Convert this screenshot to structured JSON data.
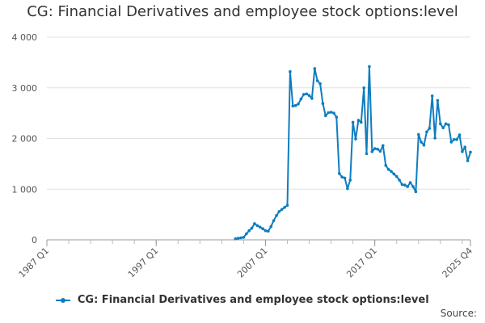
{
  "chart_data": {
    "type": "line",
    "title": "CG: Financial Derivatives and employee stock options:level",
    "xlabel": "",
    "ylabel": "",
    "ylim": [
      0,
      4000
    ],
    "yticks": [
      0,
      1000,
      2000,
      3000,
      4000
    ],
    "ytick_labels": [
      "0",
      "1 000",
      "2 000",
      "3 000",
      "4 000"
    ],
    "x_start": "1987 Q1",
    "x_end": "2025 Q4",
    "xtick_labels": [
      "1987 Q1",
      "1997 Q1",
      "2007 Q1",
      "2017 Q1",
      "2025 Q4"
    ],
    "xtick_positions": [
      "1987 Q1",
      "1997 Q1",
      "2007 Q1",
      "2017 Q1",
      "2025 Q4"
    ],
    "grid": "horizontal",
    "legend": "bottom",
    "color": "#0e7dbf",
    "series": [
      {
        "name": "CG: Financial Derivatives and employee stock options:level",
        "x": [
          "2004 Q2",
          "2004 Q3",
          "2004 Q4",
          "2005 Q1",
          "2005 Q2",
          "2005 Q3",
          "2005 Q4",
          "2006 Q1",
          "2006 Q2",
          "2006 Q3",
          "2006 Q4",
          "2007 Q1",
          "2007 Q2",
          "2007 Q3",
          "2007 Q4",
          "2008 Q1",
          "2008 Q2",
          "2008 Q3",
          "2008 Q4",
          "2009 Q1",
          "2009 Q2",
          "2009 Q3",
          "2009 Q4",
          "2010 Q1",
          "2010 Q2",
          "2010 Q3",
          "2010 Q4",
          "2011 Q1",
          "2011 Q2",
          "2011 Q3",
          "2011 Q4",
          "2012 Q1",
          "2012 Q2",
          "2012 Q3",
          "2012 Q4",
          "2013 Q1",
          "2013 Q2",
          "2013 Q3",
          "2013 Q4",
          "2014 Q1",
          "2014 Q2",
          "2014 Q3",
          "2014 Q4",
          "2015 Q1",
          "2015 Q2",
          "2015 Q3",
          "2015 Q4",
          "2016 Q1",
          "2016 Q2",
          "2016 Q3",
          "2016 Q4",
          "2017 Q1",
          "2017 Q2",
          "2017 Q3",
          "2017 Q4",
          "2018 Q1",
          "2018 Q2",
          "2018 Q3",
          "2018 Q4",
          "2019 Q1",
          "2019 Q2",
          "2019 Q3",
          "2019 Q4",
          "2020 Q1",
          "2020 Q2",
          "2020 Q3",
          "2020 Q4",
          "2021 Q1",
          "2021 Q2",
          "2021 Q3",
          "2021 Q4",
          "2022 Q1",
          "2022 Q2",
          "2022 Q3",
          "2022 Q4",
          "2023 Q1",
          "2023 Q2",
          "2023 Q3",
          "2023 Q4",
          "2024 Q1",
          "2024 Q2",
          "2024 Q3",
          "2024 Q4",
          "2025 Q1",
          "2025 Q2",
          "2025 Q3",
          "2025 Q4"
        ],
        "values": [
          20,
          30,
          40,
          50,
          120,
          180,
          230,
          320,
          280,
          250,
          220,
          180,
          170,
          260,
          380,
          480,
          560,
          600,
          640,
          680,
          3320,
          2640,
          2650,
          2680,
          2780,
          2870,
          2880,
          2850,
          2790,
          3380,
          3140,
          3080,
          2690,
          2450,
          2510,
          2520,
          2500,
          2420,
          1310,
          1240,
          1220,
          1010,
          1180,
          2320,
          1990,
          2360,
          2320,
          3000,
          1700,
          3420,
          1740,
          1800,
          1790,
          1750,
          1860,
          1470,
          1390,
          1350,
          1300,
          1250,
          1180,
          1090,
          1080,
          1050,
          1130,
          1050,
          950,
          2080,
          1930,
          1870,
          2130,
          2200,
          2840,
          2010,
          2750,
          2290,
          2210,
          2290,
          2270,
          1930,
          1980,
          1980,
          2070,
          1740,
          1830,
          1560,
          1730
        ]
      }
    ]
  },
  "legend_label": "CG: Financial Derivatives and employee stock options:level",
  "source_label": "Source:"
}
